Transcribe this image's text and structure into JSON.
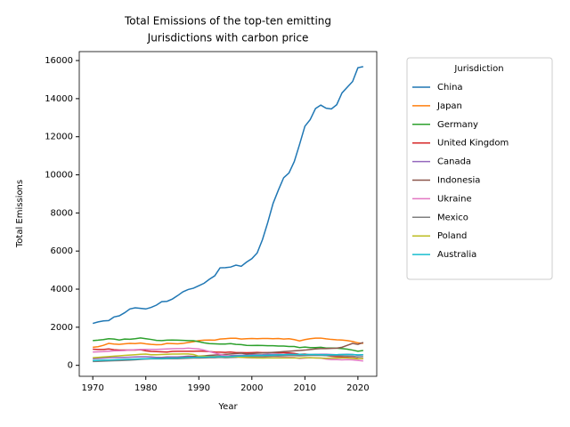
{
  "chart_data": {
    "type": "line",
    "title": [
      "Total Emissions of the top-ten emitting",
      "Jurisdictions with carbon price"
    ],
    "x_label": "Year",
    "y_label": "Total Emissions",
    "legend_title": "Jurisdiction",
    "legend_position": "outside right",
    "grid": false,
    "x": [
      1970,
      1971,
      1972,
      1973,
      1974,
      1975,
      1976,
      1977,
      1978,
      1979,
      1980,
      1981,
      1982,
      1983,
      1984,
      1985,
      1986,
      1987,
      1988,
      1989,
      1990,
      1991,
      1992,
      1993,
      1994,
      1995,
      1996,
      1997,
      1998,
      1999,
      2000,
      2001,
      2002,
      2003,
      2004,
      2005,
      2006,
      2007,
      2008,
      2009,
      2010,
      2011,
      2012,
      2013,
      2014,
      2015,
      2016,
      2017,
      2018,
      2019,
      2020,
      2021
    ],
    "xlim": [
      1967.45,
      2023.55
    ],
    "xticks": [
      1970,
      1980,
      1990,
      2000,
      2010,
      2020
    ],
    "ylim": [
      -575,
      16470
    ],
    "yticks": [
      0,
      2000,
      4000,
      6000,
      8000,
      10000,
      12000,
      14000,
      16000
    ],
    "series": [
      {
        "name": "China",
        "color": "#1f77b4",
        "values": [
          2200,
          2280,
          2330,
          2350,
          2540,
          2600,
          2760,
          2960,
          3020,
          2990,
          2960,
          3040,
          3160,
          3340,
          3360,
          3480,
          3660,
          3860,
          3980,
          4050,
          4180,
          4310,
          4520,
          4700,
          5120,
          5130,
          5160,
          5260,
          5200,
          5420,
          5600,
          5900,
          6600,
          7500,
          8500,
          9200,
          9850,
          10100,
          10700,
          11600,
          12550,
          12900,
          13480,
          13660,
          13500,
          13460,
          13680,
          14300,
          14600,
          14900,
          15620,
          15680
        ]
      },
      {
        "name": "Japan",
        "color": "#ff7f0e",
        "values": [
          950,
          980,
          1050,
          1150,
          1120,
          1100,
          1130,
          1150,
          1140,
          1170,
          1130,
          1100,
          1080,
          1090,
          1150,
          1140,
          1130,
          1150,
          1200,
          1240,
          1300,
          1320,
          1330,
          1320,
          1380,
          1400,
          1420,
          1420,
          1380,
          1400,
          1410,
          1400,
          1410,
          1410,
          1400,
          1410,
          1380,
          1400,
          1350,
          1280,
          1350,
          1400,
          1430,
          1430,
          1390,
          1360,
          1340,
          1330,
          1300,
          1250,
          1180,
          1150
        ]
      },
      {
        "name": "Germany",
        "color": "#2ca02c",
        "values": [
          1300,
          1320,
          1350,
          1400,
          1380,
          1330,
          1380,
          1370,
          1400,
          1440,
          1400,
          1360,
          1310,
          1300,
          1320,
          1330,
          1320,
          1310,
          1300,
          1290,
          1240,
          1180,
          1140,
          1130,
          1120,
          1120,
          1140,
          1100,
          1090,
          1050,
          1040,
          1050,
          1040,
          1030,
          1030,
          1010,
          1010,
          990,
          990,
          930,
          960,
          930,
          930,
          950,
          910,
          910,
          900,
          880,
          850,
          800,
          740,
          780
        ]
      },
      {
        "name": "United Kingdom",
        "color": "#d62728",
        "values": [
          850,
          830,
          830,
          860,
          820,
          800,
          800,
          800,
          800,
          820,
          760,
          730,
          720,
          710,
          700,
          730,
          740,
          740,
          740,
          740,
          750,
          740,
          720,
          700,
          690,
          680,
          700,
          670,
          670,
          660,
          670,
          680,
          670,
          670,
          670,
          660,
          660,
          650,
          630,
          580,
          590,
          550,
          570,
          560,
          510,
          480,
          460,
          440,
          420,
          400,
          360,
          350
        ]
      },
      {
        "name": "Canada",
        "color": "#9467bd",
        "values": [
          350,
          360,
          380,
          400,
          410,
          410,
          420,
          430,
          440,
          450,
          450,
          440,
          420,
          420,
          440,
          440,
          440,
          460,
          480,
          470,
          460,
          450,
          460,
          460,
          480,
          490,
          510,
          520,
          530,
          540,
          560,
          550,
          560,
          580,
          580,
          580,
          570,
          590,
          570,
          550,
          560,
          570,
          570,
          580,
          580,
          570,
          560,
          570,
          580,
          570,
          530,
          550
        ]
      },
      {
        "name": "Indonesia",
        "color": "#8c564b",
        "values": [
          250,
          250,
          260,
          270,
          280,
          290,
          300,
          310,
          320,
          330,
          340,
          350,
          360,
          370,
          380,
          390,
          400,
          420,
          440,
          460,
          480,
          500,
          520,
          540,
          560,
          580,
          600,
          620,
          640,
          600,
          620,
          640,
          650,
          660,
          680,
          700,
          720,
          740,
          760,
          780,
          800,
          830,
          860,
          880,
          880,
          890,
          900,
          950,
          1050,
          1150,
          1100,
          1200
        ]
      },
      {
        "name": "Ukraine",
        "color": "#e377c2",
        "values": [
          700,
          710,
          720,
          740,
          760,
          770,
          780,
          800,
          820,
          830,
          840,
          840,
          840,
          850,
          860,
          870,
          880,
          880,
          900,
          880,
          860,
          800,
          720,
          650,
          580,
          520,
          470,
          450,
          420,
          400,
          390,
          390,
          400,
          400,
          400,
          410,
          420,
          420,
          410,
          360,
          380,
          400,
          390,
          380,
          330,
          300,
          300,
          290,
          300,
          290,
          260,
          230
        ]
      },
      {
        "name": "Mexico",
        "color": "#7f7f7f",
        "values": [
          200,
          210,
          220,
          230,
          240,
          250,
          260,
          270,
          290,
          310,
          330,
          340,
          340,
          340,
          350,
          350,
          350,
          360,
          370,
          380,
          380,
          390,
          400,
          400,
          420,
          400,
          410,
          420,
          440,
          440,
          450,
          460,
          460,
          470,
          480,
          490,
          500,
          510,
          510,
          500,
          510,
          520,
          530,
          520,
          510,
          510,
          510,
          500,
          490,
          480,
          440,
          460
        ]
      },
      {
        "name": "Poland",
        "color": "#bcbd22",
        "values": [
          400,
          420,
          440,
          460,
          480,
          500,
          520,
          540,
          560,
          580,
          590,
          560,
          560,
          570,
          580,
          590,
          590,
          600,
          600,
          570,
          480,
          480,
          460,
          460,
          450,
          440,
          460,
          450,
          420,
          410,
          400,
          390,
          380,
          390,
          390,
          390,
          390,
          390,
          390,
          380,
          400,
          400,
          390,
          380,
          370,
          380,
          380,
          390,
          390,
          370,
          340,
          360
        ]
      },
      {
        "name": "Australia",
        "color": "#17becf",
        "values": [
          250,
          260,
          270,
          280,
          290,
          300,
          310,
          320,
          330,
          340,
          350,
          360,
          360,
          360,
          370,
          380,
          380,
          400,
          410,
          420,
          430,
          430,
          440,
          440,
          450,
          450,
          460,
          480,
          490,
          500,
          510,
          520,
          520,
          530,
          540,
          550,
          560,
          570,
          570,
          580,
          570,
          570,
          570,
          560,
          550,
          560,
          560,
          570,
          570,
          570,
          550,
          560
        ]
      }
    ]
  }
}
